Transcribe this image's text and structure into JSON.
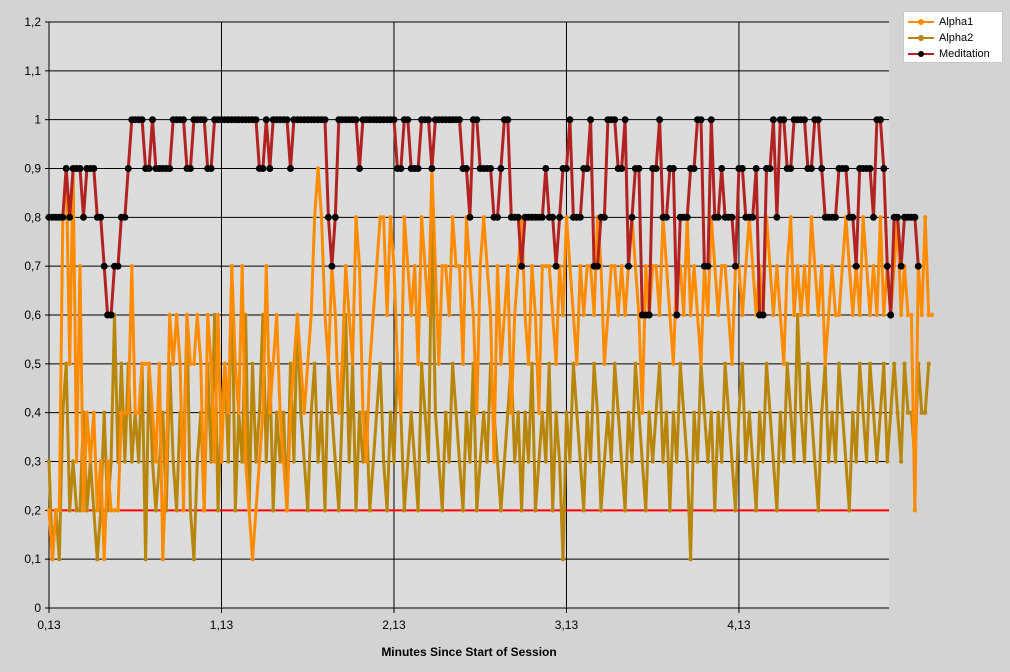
{
  "chart_data": {
    "type": "line",
    "title": "",
    "xlabel": "Minutes Since Start of Session",
    "ylabel": "",
    "ylim": [
      0,
      1.2
    ],
    "y_ticks": [
      "0",
      "0,1",
      "0,2",
      "0,3",
      "0,4",
      "0,5",
      "0,6",
      "0,7",
      "0,8",
      "0,9",
      "1",
      "1,1",
      "1,2"
    ],
    "x_tick_labels": [
      "0,13",
      "1,13",
      "2,13",
      "3,13",
      "4,13"
    ],
    "x_tick_values": [
      0.13,
      1.13,
      2.13,
      3.13,
      4.13
    ],
    "xlim": [
      0.13,
      5.0
    ],
    "grid": true,
    "legend_position": "top-right outside",
    "threshold": {
      "value": 0.2,
      "color": "#ff0000"
    },
    "series": [
      {
        "name": "Alpha1",
        "color": "#ff8c00",
        "x0": 0.13,
        "dx": 0.02,
        "values": [
          0.2,
          0.1,
          0.2,
          0.2,
          0.8,
          0.9,
          0.5,
          0.9,
          0.3,
          0.7,
          0.2,
          0.4,
          0.3,
          0.4,
          0.2,
          0.3,
          0.1,
          0.3,
          0.2,
          0.2,
          0.2,
          0.4,
          0.4,
          0.4,
          0.7,
          0.4,
          0.4,
          0.5,
          0.5,
          0.5,
          0.4,
          0.3,
          0.5,
          0.1,
          0.3,
          0.6,
          0.5,
          0.6,
          0.5,
          0.2,
          0.6,
          0.5,
          0.5,
          0.6,
          0.5,
          0.2,
          0.6,
          0.5,
          0.3,
          0.6,
          0.3,
          0.5,
          0.4,
          0.7,
          0.5,
          0.4,
          0.7,
          0.3,
          0.2,
          0.1,
          0.2,
          0.3,
          0.4,
          0.7,
          0.4,
          0.5,
          0.6,
          0.4,
          0.3,
          0.2,
          0.4,
          0.5,
          0.6,
          0.5,
          0.4,
          0.5,
          0.6,
          0.8,
          0.9,
          0.8,
          0.6,
          0.5,
          0.7,
          0.6,
          0.4,
          0.5,
          0.7,
          0.6,
          0.5,
          0.8,
          0.7,
          0.4,
          0.3,
          0.5,
          0.6,
          0.7,
          0.8,
          0.8,
          0.6,
          0.8,
          0.7,
          0.5,
          0.4,
          0.8,
          0.7,
          0.6,
          0.7,
          0.5,
          0.8,
          0.7,
          0.6,
          0.9,
          0.7,
          0.5,
          0.7,
          0.7,
          0.6,
          0.8,
          0.7,
          0.7,
          0.5,
          0.8,
          0.7,
          0.6,
          0.4,
          0.7,
          0.8,
          0.7,
          0.6,
          0.3,
          0.7,
          0.5,
          0.6,
          0.7,
          0.4,
          0.6,
          0.7,
          0.8,
          0.6,
          0.5,
          0.7,
          0.6,
          0.4,
          0.7,
          0.7,
          0.7,
          0.6,
          0.5,
          0.7,
          0.6,
          0.8,
          0.7,
          0.6,
          0.5,
          0.7,
          0.6,
          0.7,
          0.7,
          0.6,
          0.8,
          0.7,
          0.5,
          0.6,
          0.7,
          0.7,
          0.6,
          0.7,
          0.6,
          0.7,
          0.8,
          0.7,
          0.6,
          0.4,
          0.7,
          0.6,
          0.7,
          0.7,
          0.6,
          0.8,
          0.7,
          0.6,
          0.5,
          0.7,
          0.7,
          0.6,
          0.8,
          0.6,
          0.7,
          0.6,
          0.5,
          0.7,
          0.6,
          0.8,
          0.7,
          0.6,
          0.7,
          0.7,
          0.6,
          0.5,
          0.7,
          0.7,
          0.6,
          0.7,
          0.8,
          0.7,
          0.6,
          0.7,
          0.6,
          0.8,
          0.7,
          0.6,
          0.7,
          0.6,
          0.5,
          0.7,
          0.8,
          0.6,
          0.7,
          0.6,
          0.7,
          0.6,
          0.8,
          0.7,
          0.6,
          0.7,
          0.5,
          0.6,
          0.7,
          0.6,
          0.6,
          0.7,
          0.8,
          0.7,
          0.6,
          0.7,
          0.6,
          0.8,
          0.7,
          0.6,
          0.7,
          0.6,
          0.8,
          0.6,
          0.7,
          0.6,
          0.7,
          0.8,
          0.6,
          0.7,
          0.6,
          0.6,
          0.2,
          0.7,
          0.6,
          0.8,
          0.6,
          0.6
        ]
      },
      {
        "name": "Alpha2",
        "color": "#b8860b",
        "x0": 0.13,
        "dx": 0.02,
        "values": [
          0.3,
          0.1,
          0.2,
          0.1,
          0.4,
          0.5,
          0.2,
          0.3,
          0.2,
          0.2,
          0.4,
          0.2,
          0.3,
          0.2,
          0.1,
          0.2,
          0.4,
          0.2,
          0.3,
          0.6,
          0.3,
          0.5,
          0.3,
          0.5,
          0.3,
          0.4,
          0.3,
          0.5,
          0.1,
          0.5,
          0.3,
          0.2,
          0.3,
          0.4,
          0.2,
          0.5,
          0.3,
          0.2,
          0.4,
          0.3,
          0.6,
          0.2,
          0.1,
          0.3,
          0.4,
          0.2,
          0.5,
          0.3,
          0.6,
          0.2,
          0.4,
          0.5,
          0.3,
          0.7,
          0.2,
          0.4,
          0.3,
          0.6,
          0.2,
          0.5,
          0.3,
          0.4,
          0.6,
          0.3,
          0.5,
          0.2,
          0.4,
          0.3,
          0.4,
          0.2,
          0.5,
          0.3,
          0.6,
          0.4,
          0.3,
          0.2,
          0.4,
          0.5,
          0.3,
          0.4,
          0.2,
          0.5,
          0.4,
          0.3,
          0.2,
          0.4,
          0.6,
          0.3,
          0.5,
          0.2,
          0.4,
          0.3,
          0.4,
          0.2,
          0.3,
          0.4,
          0.5,
          0.3,
          0.2,
          0.4,
          0.3,
          0.5,
          0.4,
          0.2,
          0.3,
          0.4,
          0.3,
          0.2,
          0.5,
          0.4,
          0.3,
          0.8,
          0.4,
          0.3,
          0.2,
          0.4,
          0.3,
          0.5,
          0.4,
          0.3,
          0.2,
          0.4,
          0.3,
          0.5,
          0.2,
          0.3,
          0.4,
          0.3,
          0.5,
          0.4,
          0.3,
          0.2,
          0.3,
          0.4,
          0.5,
          0.3,
          0.4,
          0.2,
          0.4,
          0.3,
          0.5,
          0.2,
          0.3,
          0.4,
          0.3,
          0.5,
          0.2,
          0.4,
          0.3,
          0.1,
          0.4,
          0.3,
          0.5,
          0.4,
          0.3,
          0.2,
          0.4,
          0.3,
          0.5,
          0.4,
          0.2,
          0.3,
          0.4,
          0.3,
          0.5,
          0.4,
          0.3,
          0.2,
          0.4,
          0.3,
          0.5,
          0.4,
          0.3,
          0.2,
          0.4,
          0.3,
          0.4,
          0.5,
          0.3,
          0.4,
          0.2,
          0.4,
          0.3,
          0.5,
          0.4,
          0.3,
          0.1,
          0.4,
          0.3,
          0.5,
          0.4,
          0.3,
          0.4,
          0.2,
          0.4,
          0.3,
          0.5,
          0.4,
          0.3,
          0.2,
          0.4,
          0.5,
          0.3,
          0.4,
          0.3,
          0.2,
          0.4,
          0.3,
          0.5,
          0.4,
          0.3,
          0.2,
          0.4,
          0.3,
          0.5,
          0.4,
          0.3,
          0.6,
          0.4,
          0.3,
          0.5,
          0.4,
          0.3,
          0.2,
          0.4,
          0.5,
          0.3,
          0.4,
          0.3,
          0.5,
          0.4,
          0.3,
          0.2,
          0.4,
          0.3,
          0.5,
          0.4,
          0.3,
          0.5,
          0.4,
          0.3,
          0.4,
          0.5,
          0.3,
          0.4,
          0.5,
          0.4,
          0.3,
          0.5,
          0.4,
          0.4,
          0.3,
          0.5,
          0.4,
          0.4,
          0.5
        ]
      },
      {
        "name": "Meditation",
        "color": "#b22222",
        "x0": 0.13,
        "dx": 0.02,
        "values": [
          0.8,
          0.8,
          0.8,
          0.8,
          0.8,
          0.9,
          0.8,
          0.9,
          0.9,
          0.9,
          0.8,
          0.9,
          0.9,
          0.9,
          0.8,
          0.8,
          0.7,
          0.6,
          0.6,
          0.7,
          0.7,
          0.8,
          0.8,
          0.9,
          1,
          1,
          1,
          1,
          0.9,
          0.9,
          1,
          0.9,
          0.9,
          0.9,
          0.9,
          0.9,
          1,
          1,
          1,
          1,
          0.9,
          0.9,
          1,
          1,
          1,
          1,
          0.9,
          0.9,
          1,
          1,
          1,
          1,
          1,
          1,
          1,
          1,
          1,
          1,
          1,
          1,
          1,
          0.9,
          0.9,
          1,
          0.9,
          1,
          1,
          1,
          1,
          1,
          0.9,
          1,
          1,
          1,
          1,
          1,
          1,
          1,
          1,
          1,
          1,
          0.8,
          0.7,
          0.8,
          1,
          1,
          1,
          1,
          1,
          1,
          0.9,
          1,
          1,
          1,
          1,
          1,
          1,
          1,
          1,
          1,
          1,
          0.9,
          0.9,
          1,
          1,
          0.9,
          0.9,
          0.9,
          1,
          1,
          1,
          0.9,
          1,
          1,
          1,
          1,
          1,
          1,
          1,
          1,
          0.9,
          0.9,
          0.8,
          1,
          1,
          0.9,
          0.9,
          0.9,
          0.9,
          0.8,
          0.8,
          0.9,
          1,
          1,
          0.8,
          0.8,
          0.8,
          0.7,
          0.8,
          0.8,
          0.8,
          0.8,
          0.8,
          0.8,
          0.9,
          0.8,
          0.8,
          0.7,
          0.8,
          0.9,
          0.9,
          1,
          0.8,
          0.8,
          0.8,
          0.9,
          0.9,
          1,
          0.7,
          0.7,
          0.8,
          0.8,
          1,
          1,
          1,
          0.9,
          0.9,
          1,
          0.7,
          0.8,
          0.9,
          0.9,
          0.6,
          0.6,
          0.6,
          0.9,
          0.9,
          1,
          0.8,
          0.8,
          0.9,
          0.9,
          0.6,
          0.8,
          0.8,
          0.8,
          0.9,
          0.9,
          1,
          1,
          0.7,
          0.7,
          1,
          0.8,
          0.8,
          0.9,
          0.8,
          0.8,
          0.8,
          0.7,
          0.9,
          0.9,
          0.8,
          0.8,
          0.8,
          0.9,
          0.6,
          0.6,
          0.9,
          0.9,
          1,
          0.8,
          1,
          1,
          0.9,
          0.9,
          1,
          1,
          1,
          1,
          0.9,
          0.9,
          1,
          1,
          0.9,
          0.8,
          0.8,
          0.8,
          0.8,
          0.9,
          0.9,
          0.9,
          0.8,
          0.8,
          0.7,
          0.9,
          0.9,
          0.9,
          0.9,
          0.8,
          1,
          1,
          0.9,
          0.7,
          0.6,
          0.8,
          0.8,
          0.7,
          0.8,
          0.8,
          0.8,
          0.8,
          0.7
        ]
      }
    ]
  }
}
